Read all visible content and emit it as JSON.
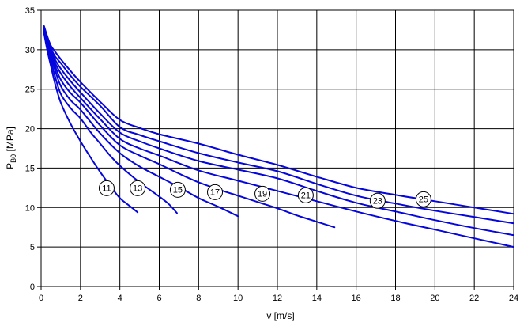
{
  "page": {
    "background": "#ffffff"
  },
  "chart_data": {
    "type": "line",
    "title": "",
    "xlabel": "v [m/s]",
    "ylabel": {
      "base": "P",
      "sub": "B0",
      "unit": " [MPa]"
    },
    "xlim": [
      0,
      24
    ],
    "ylim": [
      0,
      35
    ],
    "x_ticks": [
      0,
      2,
      4,
      6,
      8,
      10,
      12,
      14,
      16,
      18,
      20,
      22,
      24
    ],
    "y_ticks": [
      0,
      5,
      10,
      15,
      20,
      25,
      30,
      35
    ],
    "grid": true,
    "legend_position": "none",
    "styles": {
      "curve_color": "#0505dd",
      "grid_color": "#000000",
      "axis_color": "#000000",
      "text_color": "#000000",
      "plot_background": "#ffffff",
      "label_circle_fill": "#ffffff",
      "label_circle_stroke": "#000000"
    },
    "series": [
      {
        "name": "11",
        "label_pos": {
          "v": 3.33,
          "p": 12.45
        },
        "points": [
          [
            0.15,
            32.1
          ],
          [
            0.3,
            30.1
          ],
          [
            0.5,
            27.9
          ],
          [
            0.7,
            25.8
          ],
          [
            1,
            23.3
          ],
          [
            1.5,
            20.6
          ],
          [
            2,
            18.4
          ],
          [
            2.5,
            16.4
          ],
          [
            3,
            14.5
          ],
          [
            3.5,
            12.8
          ],
          [
            4,
            11.2
          ],
          [
            4.5,
            10.2
          ],
          [
            4.9,
            9.4
          ]
        ]
      },
      {
        "name": "13",
        "label_pos": {
          "v": 4.9,
          "p": 12.45
        },
        "points": [
          [
            0.15,
            32.3
          ],
          [
            0.3,
            30.5
          ],
          [
            0.5,
            28.6
          ],
          [
            0.7,
            26.7
          ],
          [
            1,
            24.4
          ],
          [
            1.5,
            22.6
          ],
          [
            2,
            21.3
          ],
          [
            2.5,
            19.6
          ],
          [
            3,
            18.1
          ],
          [
            3.5,
            16.6
          ],
          [
            4,
            15.3
          ],
          [
            5,
            13.2
          ],
          [
            6,
            11.4
          ],
          [
            6.5,
            10.4
          ],
          [
            6.9,
            9.3
          ]
        ]
      },
      {
        "name": "15",
        "label_pos": {
          "v": 6.94,
          "p": 12.25
        },
        "points": [
          [
            0.15,
            32.5
          ],
          [
            0.3,
            30.8
          ],
          [
            0.5,
            29.1
          ],
          [
            0.7,
            27.5
          ],
          [
            1,
            25.4
          ],
          [
            1.5,
            23.6
          ],
          [
            2,
            22.4
          ],
          [
            3,
            19.4
          ],
          [
            4,
            16.9
          ],
          [
            5,
            15.2
          ],
          [
            6,
            13.9
          ],
          [
            7,
            12.6
          ],
          [
            8,
            11.2
          ],
          [
            9,
            10.1
          ],
          [
            10,
            8.9
          ]
        ]
      },
      {
        "name": "17",
        "label_pos": {
          "v": 8.83,
          "p": 11.95
        },
        "points": [
          [
            0.15,
            32.6
          ],
          [
            0.3,
            31.0
          ],
          [
            0.5,
            29.4
          ],
          [
            0.7,
            28.0
          ],
          [
            1,
            26.2
          ],
          [
            1.5,
            24.5
          ],
          [
            2,
            23.3
          ],
          [
            3,
            20.4
          ],
          [
            4,
            17.9
          ],
          [
            5,
            16.6
          ],
          [
            6,
            15.5
          ],
          [
            7,
            14.3
          ],
          [
            8,
            13.2
          ],
          [
            9,
            12.3
          ],
          [
            10,
            11.5
          ],
          [
            11,
            10.7
          ],
          [
            12,
            9.9
          ],
          [
            13,
            9.0
          ],
          [
            14,
            8.2
          ],
          [
            14.9,
            7.5
          ]
        ]
      },
      {
        "name": "19",
        "label_pos": {
          "v": 11.24,
          "p": 11.75
        },
        "points": [
          [
            0.15,
            32.7
          ],
          [
            0.3,
            31.2
          ],
          [
            0.5,
            29.7
          ],
          [
            0.7,
            28.4
          ],
          [
            1,
            27.0
          ],
          [
            1.5,
            25.3
          ],
          [
            2,
            23.9
          ],
          [
            3,
            21.2
          ],
          [
            4,
            18.7
          ],
          [
            5,
            17.5
          ],
          [
            6,
            16.6
          ],
          [
            8,
            14.7
          ],
          [
            10,
            13.4
          ],
          [
            12,
            12.1
          ],
          [
            14,
            10.8
          ],
          [
            16,
            9.5
          ],
          [
            18,
            8.3
          ],
          [
            20,
            7.2
          ],
          [
            22,
            6.1
          ],
          [
            24,
            5.0
          ]
        ]
      },
      {
        "name": "21",
        "label_pos": {
          "v": 13.44,
          "p": 11.55
        },
        "points": [
          [
            0.15,
            32.8
          ],
          [
            0.3,
            31.4
          ],
          [
            0.5,
            30.0
          ],
          [
            0.7,
            28.8
          ],
          [
            1,
            27.6
          ],
          [
            1.5,
            26.0
          ],
          [
            2,
            24.6
          ],
          [
            3,
            21.9
          ],
          [
            4,
            19.5
          ],
          [
            5,
            18.4
          ],
          [
            6,
            17.5
          ],
          [
            8,
            15.9
          ],
          [
            10,
            14.8
          ],
          [
            12,
            13.7
          ],
          [
            14,
            12.1
          ],
          [
            16,
            10.6
          ],
          [
            18,
            9.5
          ],
          [
            20,
            8.4
          ],
          [
            22,
            7.4
          ],
          [
            24,
            6.5
          ]
        ]
      },
      {
        "name": "23",
        "label_pos": {
          "v": 17.09,
          "p": 10.85
        },
        "points": [
          [
            0.15,
            32.9
          ],
          [
            0.3,
            31.6
          ],
          [
            0.5,
            30.2
          ],
          [
            0.7,
            29.2
          ],
          [
            1,
            28.3
          ],
          [
            1.5,
            26.7
          ],
          [
            2,
            25.3
          ],
          [
            3,
            22.9
          ],
          [
            4,
            20.2
          ],
          [
            5,
            19.2
          ],
          [
            6,
            18.4
          ],
          [
            8,
            16.9
          ],
          [
            10,
            15.7
          ],
          [
            12,
            14.6
          ],
          [
            14,
            13.0
          ],
          [
            16,
            11.5
          ],
          [
            18,
            10.5
          ],
          [
            20,
            9.6
          ],
          [
            22,
            8.8
          ],
          [
            24,
            8.0
          ]
        ]
      },
      {
        "name": "25",
        "label_pos": {
          "v": 19.42,
          "p": 11.05
        },
        "points": [
          [
            0.15,
            33.0
          ],
          [
            0.3,
            31.8
          ],
          [
            0.5,
            30.5
          ],
          [
            0.7,
            29.8
          ],
          [
            1,
            28.8
          ],
          [
            1.5,
            27.3
          ],
          [
            2,
            25.9
          ],
          [
            3,
            23.4
          ],
          [
            4,
            21.1
          ],
          [
            5,
            20.1
          ],
          [
            6,
            19.3
          ],
          [
            8,
            18.1
          ],
          [
            10,
            16.7
          ],
          [
            12,
            15.4
          ],
          [
            14,
            13.9
          ],
          [
            16,
            12.5
          ],
          [
            18,
            11.6
          ],
          [
            20,
            10.8
          ],
          [
            22,
            10.0
          ],
          [
            24,
            9.2
          ]
        ]
      }
    ]
  }
}
